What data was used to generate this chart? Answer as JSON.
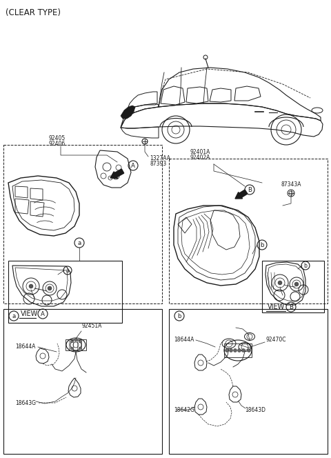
{
  "bg_color": "#ffffff",
  "line_color": "#1a1a1a",
  "labels": {
    "clear_type": "(CLEAR TYPE)",
    "1327AA": "1327AA",
    "87393": "87393",
    "92405": "92405",
    "92406": "92406",
    "92401A": "92401A",
    "92402A": "92402A",
    "87343A": "87343A",
    "view_A": "VIEW",
    "view_B": "VIEW",
    "A": "A",
    "B": "B",
    "a": "a",
    "b": "b",
    "92451A": "92451A",
    "18644A": "18644A",
    "18643G": "18643G",
    "92470C": "92470C",
    "18642G": "18642G",
    "18643D": "18643D"
  },
  "fs_title": 8.5,
  "fs_label": 6.2,
  "fs_view": 7.0,
  "fs_small": 5.5
}
